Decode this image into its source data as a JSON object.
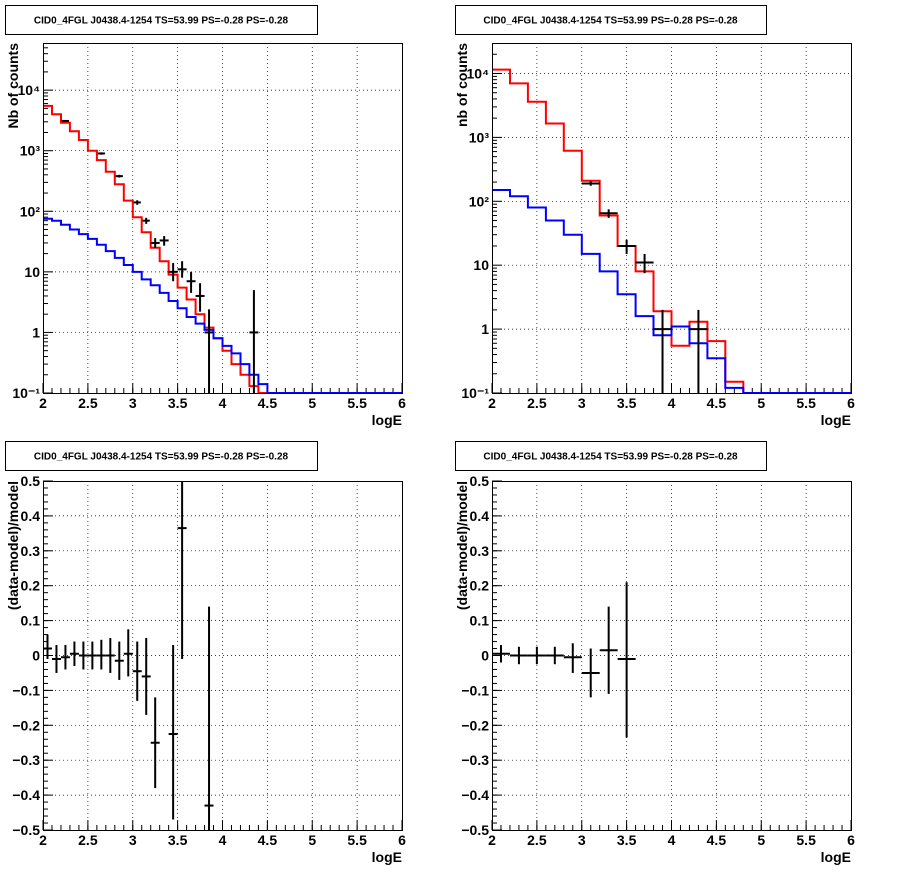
{
  "chart_data": [
    {
      "type": "line",
      "title": "CID0_4FGL J0438.4-1254 TS=53.99 PS=-0.28 PS=-0.28",
      "xlabel": "logE",
      "ylabel": "Nb of counts",
      "xlim": [
        2,
        6
      ],
      "ylim": [
        0.1,
        60000
      ],
      "yscale": "log",
      "grid": true,
      "x_ticks": [
        "2",
        "2.5",
        "3",
        "3.5",
        "4",
        "4.5",
        "5",
        "5.5",
        "6"
      ],
      "y_ticks": [
        {
          "value": 0.1,
          "label": "10⁻¹"
        },
        {
          "value": 1,
          "label": "1"
        },
        {
          "value": 10,
          "label": "10"
        },
        {
          "value": 100,
          "label": "10²"
        },
        {
          "value": 1000,
          "label": "10³"
        },
        {
          "value": 10000,
          "label": "10⁴"
        }
      ],
      "bin_edges": [
        2.0,
        2.1,
        2.2,
        2.3,
        2.4,
        2.5,
        2.6,
        2.7,
        2.8,
        2.9,
        3.0,
        3.1,
        3.2,
        3.3,
        3.4,
        3.5,
        3.6,
        3.7,
        3.8,
        3.9,
        4.0,
        4.1,
        4.2,
        4.3,
        4.4,
        4.5,
        4.6,
        4.7,
        4.8,
        4.9,
        5.0,
        5.1,
        5.2,
        5.3,
        5.4,
        5.5,
        5.6,
        5.7,
        5.8,
        5.9,
        6.0
      ],
      "series": [
        {
          "color": "#ff0000",
          "values": [
            5500,
            4000,
            2900,
            2100,
            1500,
            1000,
            700,
            450,
            280,
            150,
            80,
            45,
            25,
            15,
            9,
            5.5,
            3.5,
            2,
            1.2,
            0.8,
            0.5,
            0.3,
            0.2,
            0.13,
            0.1,
            0.1,
            0.1,
            0.1,
            0.1,
            0.1,
            0.1,
            0.1,
            0.1,
            0.1,
            0.1,
            0.1,
            0.1,
            0.1,
            0.1,
            0.1
          ]
        },
        {
          "color": "#0000ff",
          "values": [
            75,
            70,
            60,
            50,
            42,
            35,
            28,
            22,
            17,
            13,
            10,
            7.5,
            6,
            4.5,
            3.3,
            2.5,
            1.8,
            1.4,
            1.1,
            0.8,
            0.6,
            0.45,
            0.3,
            0.2,
            0.14,
            0.1,
            0.1,
            0.1,
            0.1,
            0.1,
            0.1,
            0.1,
            0.1,
            0.1,
            0.1,
            0.1,
            0.1,
            0.1,
            0.1,
            0.1
          ]
        }
      ],
      "points": [
        {
          "x": 2.25,
          "y": 3100,
          "xerr": 0.04,
          "ylo": 3000,
          "yhi": 3200
        },
        {
          "x": 2.65,
          "y": 900,
          "xerr": 0.04,
          "ylo": 860,
          "yhi": 940
        },
        {
          "x": 2.85,
          "y": 380,
          "xerr": 0.04,
          "ylo": 360,
          "yhi": 400
        },
        {
          "x": 3.05,
          "y": 140,
          "xerr": 0.04,
          "ylo": 128,
          "yhi": 152
        },
        {
          "x": 3.15,
          "y": 70,
          "xerr": 0.04,
          "ylo": 62,
          "yhi": 78
        },
        {
          "x": 3.25,
          "y": 30,
          "xerr": 0.05,
          "ylo": 25,
          "yhi": 36
        },
        {
          "x": 3.35,
          "y": 33,
          "xerr": 0.05,
          "ylo": 27,
          "yhi": 39
        },
        {
          "x": 3.45,
          "y": 10,
          "xerr": 0.05,
          "ylo": 7,
          "yhi": 14
        },
        {
          "x": 3.55,
          "y": 11,
          "xerr": 0.05,
          "ylo": 8,
          "yhi": 15
        },
        {
          "x": 3.65,
          "y": 7,
          "xerr": 0.05,
          "ylo": 4.5,
          "yhi": 10
        },
        {
          "x": 3.75,
          "y": 4,
          "xerr": 0.05,
          "ylo": 2.2,
          "yhi": 6.5
        },
        {
          "x": 3.85,
          "y": 1,
          "xerr": 0.05,
          "ylo": 0.1,
          "yhi": 2.4
        },
        {
          "x": 4.35,
          "y": 1,
          "xerr": 0.05,
          "ylo": 0.1,
          "yhi": 5
        }
      ]
    },
    {
      "type": "line",
      "title": "CID0_4FGL J0438.4-1254 TS=53.99 PS=-0.28 PS=-0.28",
      "xlabel": "logE",
      "ylabel": "nb of counts",
      "xlim": [
        2,
        6
      ],
      "ylim": [
        0.1,
        30000
      ],
      "yscale": "log",
      "grid": true,
      "x_ticks": [
        "2",
        "2.5",
        "3",
        "3.5",
        "4",
        "4.5",
        "5",
        "5.5",
        "6"
      ],
      "y_ticks": [
        {
          "value": 0.1,
          "label": "10⁻¹"
        },
        {
          "value": 1,
          "label": "1"
        },
        {
          "value": 10,
          "label": "10"
        },
        {
          "value": 100,
          "label": "10²"
        },
        {
          "value": 1000,
          "label": "10³"
        },
        {
          "value": 10000,
          "label": "10⁴"
        }
      ],
      "bin_edges": [
        2.0,
        2.2,
        2.4,
        2.6,
        2.8,
        3.0,
        3.2,
        3.4,
        3.6,
        3.8,
        4.0,
        4.2,
        4.4,
        4.6,
        4.8,
        5.0,
        5.2,
        5.4,
        5.6,
        5.8,
        6.0
      ],
      "series": [
        {
          "color": "#ff0000",
          "values": [
            11500,
            7000,
            3600,
            1650,
            620,
            210,
            60,
            20,
            8,
            1.9,
            0.55,
            1.3,
            0.65,
            0.15,
            0.1,
            0.1,
            0.1,
            0.1,
            0.1,
            0.1
          ]
        },
        {
          "color": "#0000ff",
          "values": [
            150,
            120,
            80,
            50,
            30,
            15,
            8,
            3.5,
            1.6,
            0.8,
            1.1,
            0.6,
            0.35,
            0.12,
            0.1,
            0.1,
            0.1,
            0.1,
            0.1,
            0.1
          ]
        }
      ],
      "points": [
        {
          "x": 3.1,
          "y": 190,
          "xerr": 0.1,
          "ylo": 175,
          "yhi": 205
        },
        {
          "x": 3.3,
          "y": 65,
          "xerr": 0.1,
          "ylo": 55,
          "yhi": 75
        },
        {
          "x": 3.5,
          "y": 20,
          "xerr": 0.1,
          "ylo": 15,
          "yhi": 25
        },
        {
          "x": 3.7,
          "y": 11,
          "xerr": 0.1,
          "ylo": 7.5,
          "yhi": 15
        },
        {
          "x": 3.9,
          "y": 1,
          "xerr": 0.1,
          "ylo": 0.1,
          "yhi": 2
        },
        {
          "x": 4.3,
          "y": 1,
          "xerr": 0.1,
          "ylo": 0.1,
          "yhi": 2
        }
      ]
    },
    {
      "type": "scatter",
      "title": "CID0_4FGL J0438.4-1254 TS=53.99 PS=-0.28 PS=-0.28",
      "xlabel": "logE",
      "ylabel": "(data-model)/model",
      "xlim": [
        2,
        6
      ],
      "ylim": [
        -0.5,
        0.5
      ],
      "yscale": "linear",
      "grid": true,
      "x_ticks": [
        "2",
        "2.5",
        "3",
        "3.5",
        "4",
        "4.5",
        "5",
        "5.5",
        "6"
      ],
      "y_ticks": [
        {
          "value": -0.5,
          "label": "−0.5"
        },
        {
          "value": -0.4,
          "label": "−0.4"
        },
        {
          "value": -0.3,
          "label": "−0.3"
        },
        {
          "value": -0.2,
          "label": "−0.2"
        },
        {
          "value": -0.1,
          "label": "−0.1"
        },
        {
          "value": 0,
          "label": "0"
        },
        {
          "value": 0.1,
          "label": "0.1"
        },
        {
          "value": 0.2,
          "label": "0.2"
        },
        {
          "value": 0.3,
          "label": "0.3"
        },
        {
          "value": 0.4,
          "label": "0.4"
        },
        {
          "value": 0.5,
          "label": "0.5"
        }
      ],
      "points": [
        {
          "x": 2.05,
          "y": 0.02,
          "xerr": 0.05,
          "ylo": -0.01,
          "yhi": 0.06
        },
        {
          "x": 2.15,
          "y": -0.01,
          "xerr": 0.05,
          "ylo": -0.05,
          "yhi": 0.03
        },
        {
          "x": 2.25,
          "y": -0.005,
          "xerr": 0.05,
          "ylo": -0.04,
          "yhi": 0.03
        },
        {
          "x": 2.35,
          "y": 0.005,
          "xerr": 0.05,
          "ylo": -0.03,
          "yhi": 0.04
        },
        {
          "x": 2.45,
          "y": 0.0,
          "xerr": 0.05,
          "ylo": -0.04,
          "yhi": 0.04
        },
        {
          "x": 2.55,
          "y": 0.0,
          "xerr": 0.05,
          "ylo": -0.04,
          "yhi": 0.04
        },
        {
          "x": 2.65,
          "y": 0.0,
          "xerr": 0.05,
          "ylo": -0.04,
          "yhi": 0.045
        },
        {
          "x": 2.75,
          "y": 0.0,
          "xerr": 0.05,
          "ylo": -0.05,
          "yhi": 0.05
        },
        {
          "x": 2.85,
          "y": -0.015,
          "xerr": 0.05,
          "ylo": -0.07,
          "yhi": 0.04
        },
        {
          "x": 2.95,
          "y": 0.005,
          "xerr": 0.05,
          "ylo": -0.06,
          "yhi": 0.075
        },
        {
          "x": 3.05,
          "y": -0.045,
          "xerr": 0.05,
          "ylo": -0.13,
          "yhi": 0.04
        },
        {
          "x": 3.15,
          "y": -0.06,
          "xerr": 0.05,
          "ylo": -0.17,
          "yhi": 0.05
        },
        {
          "x": 3.25,
          "y": -0.25,
          "xerr": 0.05,
          "ylo": -0.38,
          "yhi": -0.12
        },
        {
          "x": 3.45,
          "y": -0.225,
          "xerr": 0.05,
          "ylo": -0.47,
          "yhi": 0.03
        },
        {
          "x": 3.55,
          "y": 0.365,
          "xerr": 0.05,
          "ylo": -0.01,
          "yhi": 0.5
        },
        {
          "x": 3.85,
          "y": -0.43,
          "xerr": 0.05,
          "ylo": -0.5,
          "yhi": 0.14
        }
      ]
    },
    {
      "type": "scatter",
      "title": "CID0_4FGL J0438.4-1254 TS=53.99 PS=-0.28 PS=-0.28",
      "xlabel": "logE",
      "ylabel": "(data-model)/model",
      "xlim": [
        2,
        6
      ],
      "ylim": [
        -0.5,
        0.5
      ],
      "yscale": "linear",
      "grid": true,
      "x_ticks": [
        "2",
        "2.5",
        "3",
        "3.5",
        "4",
        "4.5",
        "5",
        "5.5",
        "6"
      ],
      "y_ticks": [
        {
          "value": -0.5,
          "label": "−0.5"
        },
        {
          "value": -0.4,
          "label": "−0.4"
        },
        {
          "value": -0.3,
          "label": "−0.3"
        },
        {
          "value": -0.2,
          "label": "−0.2"
        },
        {
          "value": -0.1,
          "label": "−0.1"
        },
        {
          "value": 0,
          "label": "0"
        },
        {
          "value": 0.1,
          "label": "0.1"
        },
        {
          "value": 0.2,
          "label": "0.2"
        },
        {
          "value": 0.3,
          "label": "0.3"
        },
        {
          "value": 0.4,
          "label": "0.4"
        },
        {
          "value": 0.5,
          "label": "0.5"
        }
      ],
      "points": [
        {
          "x": 2.1,
          "y": 0.005,
          "xerr": 0.1,
          "ylo": -0.02,
          "yhi": 0.03
        },
        {
          "x": 2.3,
          "y": 0.0,
          "xerr": 0.1,
          "ylo": -0.025,
          "yhi": 0.025
        },
        {
          "x": 2.5,
          "y": 0.0,
          "xerr": 0.1,
          "ylo": -0.025,
          "yhi": 0.025
        },
        {
          "x": 2.7,
          "y": 0.0,
          "xerr": 0.1,
          "ylo": -0.025,
          "yhi": 0.025
        },
        {
          "x": 2.9,
          "y": -0.005,
          "xerr": 0.1,
          "ylo": -0.05,
          "yhi": 0.035
        },
        {
          "x": 3.1,
          "y": -0.05,
          "xerr": 0.1,
          "ylo": -0.12,
          "yhi": 0.02
        },
        {
          "x": 3.3,
          "y": 0.015,
          "xerr": 0.1,
          "ylo": -0.11,
          "yhi": 0.14
        },
        {
          "x": 3.5,
          "y": -0.01,
          "xerr": 0.1,
          "ylo": -0.235,
          "yhi": 0.21
        }
      ]
    }
  ]
}
